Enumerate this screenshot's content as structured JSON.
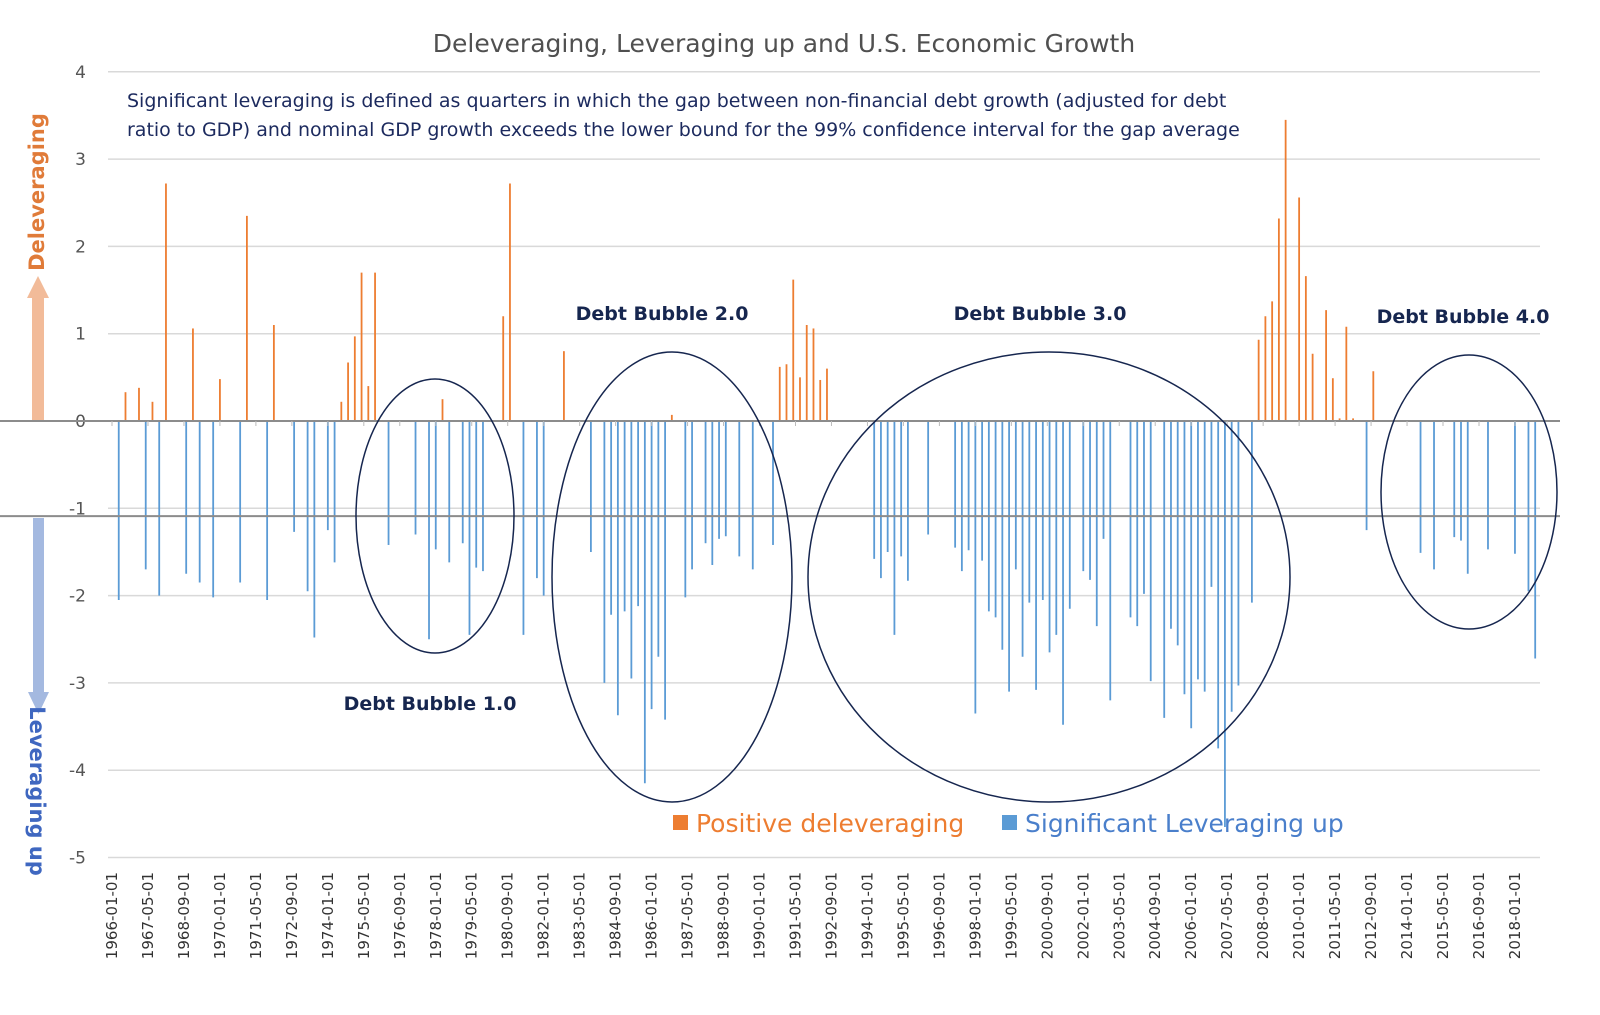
{
  "colors": {
    "deleveraging": "#ED7D31",
    "leveraging": "#5B9BD5",
    "annotation": "#16264f",
    "grid": "#d9d9d9",
    "axis": "#8c8c8c"
  },
  "chart_data": {
    "type": "bar",
    "title": "Deleveraging, Leveraging up and U.S. Economic Growth",
    "note_lines": [
      "Significant leveraging is defined as quarters in which the gap between non-financial debt growth (adjusted for debt",
      "ratio to GDP) and nominal GDP growth exceeds the lower bound for the 99% confidence interval for the gap average"
    ],
    "ylabel_up": "Deleveraging",
    "ylabel_down": "Leveraging up",
    "ylim": [
      -5,
      4
    ],
    "yticks": [
      "4",
      "3",
      "2",
      "1",
      "0",
      "-1",
      "-2",
      "-3",
      "-4",
      "-5"
    ],
    "grid": true,
    "threshold_line": -1.09,
    "legend_position": "bottom-center",
    "xticks": [
      "1966-01-01",
      "1967-05-01",
      "1968-09-01",
      "1970-01-01",
      "1971-05-01",
      "1972-09-01",
      "1974-01-01",
      "1975-05-01",
      "1976-09-01",
      "1978-01-01",
      "1979-05-01",
      "1980-09-01",
      "1982-01-01",
      "1983-05-01",
      "1984-09-01",
      "1986-01-01",
      "1987-05-01",
      "1988-09-01",
      "1990-01-01",
      "1991-05-01",
      "1992-09-01",
      "1994-01-01",
      "1995-05-01",
      "1996-09-01",
      "1998-01-01",
      "1999-05-01",
      "2000-09-01",
      "2002-01-01",
      "2003-05-01",
      "2004-09-01",
      "2006-01-01",
      "2007-05-01",
      "2008-09-01",
      "2010-01-01",
      "2011-05-01",
      "2012-09-01",
      "2014-01-01",
      "2015-05-01",
      "2016-09-01",
      "2018-01-01"
    ],
    "annotations": [
      "Debt Bubble 1.0",
      "Debt Bubble 2.0",
      "Debt Bubble 3.0",
      "Debt Bubble 4.0"
    ],
    "series": [
      {
        "name": "Positive deleveraging",
        "points": [
          [
            "1966-07-01",
            0.33
          ],
          [
            "1967-01-01",
            0.38
          ],
          [
            "1967-07-01",
            0.22
          ],
          [
            "1968-01-01",
            2.72
          ],
          [
            "1969-01-01",
            1.06
          ],
          [
            "1970-01-01",
            0.48
          ],
          [
            "1971-01-01",
            2.35
          ],
          [
            "1972-01-01",
            1.1
          ],
          [
            "1974-07-01",
            0.22
          ],
          [
            "1974-10-01",
            0.67
          ],
          [
            "1975-01-01",
            0.97
          ],
          [
            "1975-04-01",
            1.7
          ],
          [
            "1975-07-01",
            0.4
          ],
          [
            "1975-10-01",
            1.7
          ],
          [
            "1978-04-01",
            0.25
          ],
          [
            "1980-07-01",
            1.2
          ],
          [
            "1980-10-01",
            2.72
          ],
          [
            "1982-10-01",
            0.8
          ],
          [
            "1986-10-01",
            0.07
          ],
          [
            "1990-10-01",
            0.62
          ],
          [
            "1991-01-01",
            0.65
          ],
          [
            "1991-04-01",
            1.62
          ],
          [
            "1991-07-01",
            0.5
          ],
          [
            "1991-10-01",
            1.1
          ],
          [
            "1992-01-01",
            1.06
          ],
          [
            "1992-04-01",
            0.47
          ],
          [
            "1992-07-01",
            0.6
          ],
          [
            "2008-07-01",
            0.93
          ],
          [
            "2008-10-01",
            1.2
          ],
          [
            "2009-01-01",
            1.37
          ],
          [
            "2009-04-01",
            2.32
          ],
          [
            "2009-07-01",
            3.45
          ],
          [
            "2010-01-01",
            2.56
          ],
          [
            "2010-04-01",
            1.66
          ],
          [
            "2010-07-01",
            0.77
          ],
          [
            "2011-01-01",
            1.27
          ],
          [
            "2011-04-01",
            0.49
          ],
          [
            "2011-07-01",
            0.03
          ],
          [
            "2011-10-01",
            1.08
          ],
          [
            "2012-01-01",
            0.03
          ],
          [
            "2012-10-01",
            0.57
          ]
        ]
      },
      {
        "name": "Significant Leveraging up",
        "points": [
          [
            "1966-04-01",
            -2.05
          ],
          [
            "1967-04-01",
            -1.7
          ],
          [
            "1967-10-01",
            -2.0
          ],
          [
            "1968-10-01",
            -1.75
          ],
          [
            "1969-04-01",
            -1.85
          ],
          [
            "1969-10-01",
            -2.02
          ],
          [
            "1970-10-01",
            -1.85
          ],
          [
            "1971-10-01",
            -2.05
          ],
          [
            "1972-10-01",
            -1.27
          ],
          [
            "1973-04-01",
            -1.95
          ],
          [
            "1973-07-01",
            -2.48
          ],
          [
            "1974-01-01",
            -1.25
          ],
          [
            "1974-04-01",
            -1.62
          ],
          [
            "1976-04-01",
            -1.42
          ],
          [
            "1977-04-01",
            -1.3
          ],
          [
            "1977-10-01",
            -2.5
          ],
          [
            "1978-01-01",
            -1.47
          ],
          [
            "1978-07-01",
            -1.62
          ],
          [
            "1979-01-01",
            -1.4
          ],
          [
            "1979-04-01",
            -2.45
          ],
          [
            "1979-07-01",
            -1.68
          ],
          [
            "1979-10-01",
            -1.72
          ],
          [
            "1981-04-01",
            -2.45
          ],
          [
            "1981-10-01",
            -1.8
          ],
          [
            "1982-01-01",
            -2.0
          ],
          [
            "1983-10-01",
            -1.5
          ],
          [
            "1984-04-01",
            -3.0
          ],
          [
            "1984-07-01",
            -2.22
          ],
          [
            "1984-10-01",
            -3.37
          ],
          [
            "1985-01-01",
            -2.18
          ],
          [
            "1985-04-01",
            -2.95
          ],
          [
            "1985-07-01",
            -2.12
          ],
          [
            "1985-10-01",
            -4.15
          ],
          [
            "1986-01-01",
            -3.3
          ],
          [
            "1986-04-01",
            -2.7
          ],
          [
            "1986-07-01",
            -3.42
          ],
          [
            "1987-04-01",
            -2.02
          ],
          [
            "1987-07-01",
            -1.7
          ],
          [
            "1988-01-01",
            -1.4
          ],
          [
            "1988-04-01",
            -1.65
          ],
          [
            "1988-07-01",
            -1.35
          ],
          [
            "1988-10-01",
            -1.32
          ],
          [
            "1989-04-01",
            -1.55
          ],
          [
            "1989-10-01",
            -1.7
          ],
          [
            "1990-07-01",
            -1.42
          ],
          [
            "1994-04-01",
            -1.58
          ],
          [
            "1994-07-01",
            -1.8
          ],
          [
            "1994-10-01",
            -1.5
          ],
          [
            "1995-01-01",
            -2.45
          ],
          [
            "1995-04-01",
            -1.55
          ],
          [
            "1995-07-01",
            -1.83
          ],
          [
            "1996-04-01",
            -1.3
          ],
          [
            "1997-04-01",
            -1.45
          ],
          [
            "1997-07-01",
            -1.72
          ],
          [
            "1997-10-01",
            -1.48
          ],
          [
            "1998-01-01",
            -3.35
          ],
          [
            "1998-04-01",
            -1.6
          ],
          [
            "1998-07-01",
            -2.18
          ],
          [
            "1998-10-01",
            -2.25
          ],
          [
            "1999-01-01",
            -2.62
          ],
          [
            "1999-04-01",
            -3.1
          ],
          [
            "1999-07-01",
            -1.7
          ],
          [
            "1999-10-01",
            -2.7
          ],
          [
            "2000-01-01",
            -2.08
          ],
          [
            "2000-04-01",
            -3.08
          ],
          [
            "2000-07-01",
            -2.05
          ],
          [
            "2000-10-01",
            -2.65
          ],
          [
            "2001-01-01",
            -2.45
          ],
          [
            "2001-04-01",
            -3.48
          ],
          [
            "2001-07-01",
            -2.15
          ],
          [
            "2002-01-01",
            -1.72
          ],
          [
            "2002-04-01",
            -1.82
          ],
          [
            "2002-07-01",
            -2.35
          ],
          [
            "2002-10-01",
            -1.35
          ],
          [
            "2003-01-01",
            -3.2
          ],
          [
            "2003-10-01",
            -2.25
          ],
          [
            "2004-01-01",
            -2.35
          ],
          [
            "2004-04-01",
            -1.98
          ],
          [
            "2004-07-01",
            -2.98
          ],
          [
            "2005-01-01",
            -3.4
          ],
          [
            "2005-04-01",
            -2.38
          ],
          [
            "2005-07-01",
            -2.57
          ],
          [
            "2005-10-01",
            -3.13
          ],
          [
            "2006-01-01",
            -3.52
          ],
          [
            "2006-04-01",
            -2.96
          ],
          [
            "2006-07-01",
            -3.1
          ],
          [
            "2006-10-01",
            -1.9
          ],
          [
            "2007-01-01",
            -3.75
          ],
          [
            "2007-04-01",
            -4.65
          ],
          [
            "2007-07-01",
            -3.33
          ],
          [
            "2007-10-01",
            -3.03
          ],
          [
            "2008-04-01",
            -2.08
          ],
          [
            "2012-07-01",
            -1.25
          ],
          [
            "2014-07-01",
            -1.51
          ],
          [
            "2015-01-01",
            -1.7
          ],
          [
            "2015-10-01",
            -1.33
          ],
          [
            "2016-01-01",
            -1.37
          ],
          [
            "2016-04-01",
            -1.75
          ],
          [
            "2017-01-01",
            -1.47
          ],
          [
            "2018-01-01",
            -1.52
          ],
          [
            "2018-07-01",
            -1.95
          ],
          [
            "2018-10-01",
            -2.72
          ]
        ]
      }
    ]
  }
}
